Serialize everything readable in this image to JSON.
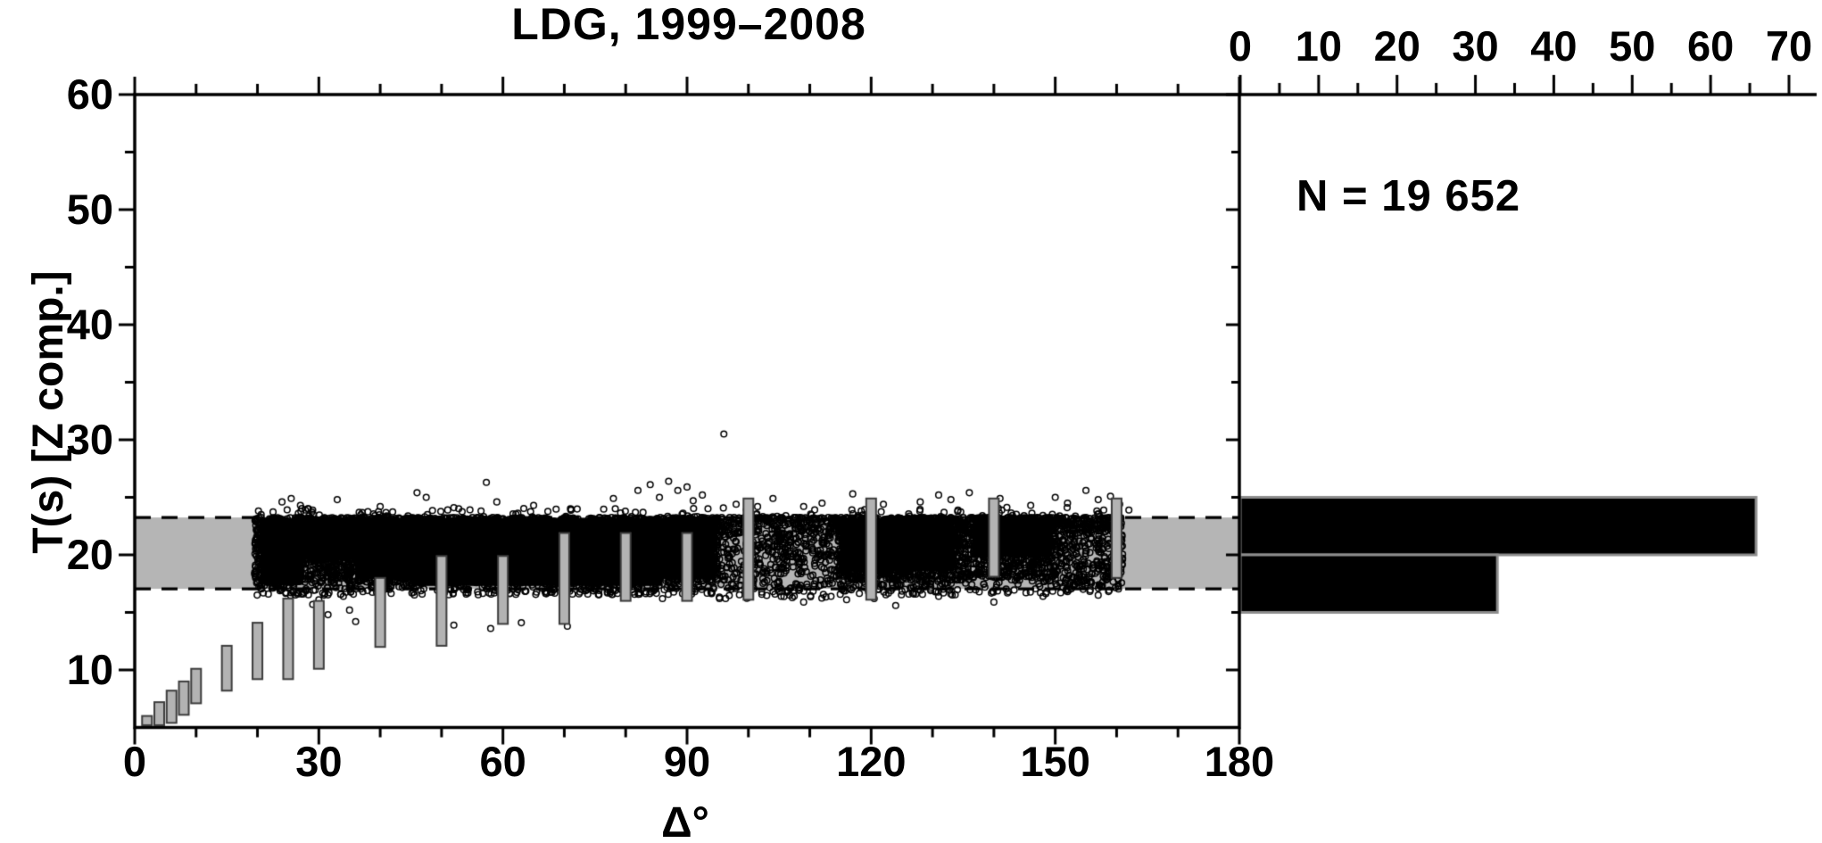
{
  "title": "LDG, 1999–2008",
  "annotations": {
    "count_label": "N = 19 652"
  },
  "axis_labels": {
    "x": "Δ°",
    "y": "T(s) [Z comp.]"
  },
  "colors": {
    "background": "#ffffff",
    "ink": "#000000",
    "band_gray": "#b5b5b5",
    "bar_gray": "#b3b3b3",
    "bar_outline": "#3d3d3d",
    "hist_fill": "#000000",
    "hist_outline": "#8c8c8c"
  },
  "chart_data": [
    {
      "type": "scatter",
      "panel": "left",
      "title": "LDG, 1999–2008",
      "xlabel": "Δ°",
      "ylabel": "T(s) [Z comp.]",
      "xlim": [
        0,
        180
      ],
      "ylim": [
        5,
        60
      ],
      "x_major_ticks": [
        0,
        30,
        60,
        90,
        120,
        150,
        180
      ],
      "x_minor_step": 10,
      "y_major_ticks": [
        10,
        20,
        30,
        40,
        50,
        60
      ],
      "y_minor_step": 5,
      "grid": false,
      "selection_band_T": [
        17.05,
        23.25
      ],
      "band_style": "gray horizontal band spanning full distance range, black dashed borders at both period limits",
      "scatter_description": "Dense cloud of ~19652 open black circles (dominant period measurements) filling the band T=17-23.3 s between distances 19.5 and 161 deg; sparser between 95-114 deg and beyond 134 deg; scattered outliers just above 23.3 s, a few below 17 s, one extreme point near (96, 30.5).",
      "dense_x_range": [
        19.5,
        161
      ],
      "marker": {
        "shape": "open-circle",
        "radius_px": 3.3,
        "stroke_px": 1.5
      },
      "period_bars_note": "gray vertical bars = period pass-band vs distance",
      "period_bars": [
        {
          "delta": 2,
          "T": [
            5.2,
            6.0
          ]
        },
        {
          "delta": 4,
          "T": [
            5.2,
            7.2
          ]
        },
        {
          "delta": 6,
          "T": [
            5.4,
            8.2
          ]
        },
        {
          "delta": 8,
          "T": [
            6.1,
            9.0
          ]
        },
        {
          "delta": 10,
          "T": [
            7.1,
            10.1
          ]
        },
        {
          "delta": 15,
          "T": [
            8.2,
            12.1
          ]
        },
        {
          "delta": 20,
          "T": [
            9.2,
            14.1
          ]
        },
        {
          "delta": 25,
          "T": [
            9.2,
            16.2
          ]
        },
        {
          "delta": 30,
          "T": [
            10.1,
            16.0
          ]
        },
        {
          "delta": 40,
          "T": [
            12.0,
            18.0
          ]
        },
        {
          "delta": 50,
          "T": [
            12.1,
            19.9
          ]
        },
        {
          "delta": 60,
          "T": [
            14.0,
            19.9
          ]
        },
        {
          "delta": 70,
          "T": [
            14.0,
            21.9
          ]
        },
        {
          "delta": 80,
          "T": [
            16.0,
            21.9
          ]
        },
        {
          "delta": 90,
          "T": [
            16.0,
            21.9
          ]
        },
        {
          "delta": 100,
          "T": [
            16.1,
            24.9
          ]
        },
        {
          "delta": 120,
          "T": [
            16.1,
            24.9
          ]
        },
        {
          "delta": 140,
          "T": [
            18.1,
            24.9
          ]
        },
        {
          "delta": 160,
          "T": [
            18.0,
            24.9
          ]
        }
      ],
      "bar_width_deg": 1.6,
      "scatter_segments": [
        {
          "x": [
            19.5,
            95
          ],
          "n": 4800,
          "t_top": 23.25,
          "t_core": 17.6,
          "pow": 1.15,
          "below_frac": 0.07,
          "t_below": 16.5
        },
        {
          "x": [
            95,
            114.5
          ],
          "n": 620,
          "t_top": 23.25,
          "t_core": 17.4,
          "pow": 1.5,
          "below_frac": 0.1,
          "t_below": 16.2
        },
        {
          "x": [
            114.5,
            134
          ],
          "n": 1650,
          "t_top": 23.25,
          "t_core": 17.8,
          "pow": 1.2,
          "below_frac": 0.06,
          "t_below": 16.5
        },
        {
          "x": [
            134,
            151
          ],
          "n": 900,
          "t_top": 23.25,
          "t_core": 18.0,
          "pow": 1.4,
          "below_frac": 0.06,
          "t_below": 16.6
        },
        {
          "x": [
            151,
            161
          ],
          "n": 400,
          "t_top": 23.25,
          "t_core": 17.9,
          "pow": 1.4,
          "below_frac": 0.08,
          "t_below": 16.8
        },
        {
          "x": [
            20,
            161
          ],
          "n": 120,
          "t_top": 24.35,
          "t_core": 23.3,
          "pow": 0.5,
          "below_frac": 0,
          "t_below": 23.3
        }
      ],
      "solid_regions": [
        {
          "x": [
            20.5,
            27.5
          ],
          "T": [
            17.4,
            23.2
          ]
        },
        {
          "x": [
            27.5,
            39
          ],
          "T": [
            19.6,
            23.2
          ]
        },
        {
          "x": [
            36,
            94.5
          ],
          "T": [
            17.9,
            23.2
          ]
        },
        {
          "x": [
            45,
            86
          ],
          "T": [
            17.3,
            23.2
          ]
        },
        {
          "x": [
            115,
            133.5
          ],
          "T": [
            18.6,
            23.2
          ]
        },
        {
          "x": [
            136.5,
            149.5
          ],
          "T": [
            19.8,
            23.2
          ]
        }
      ],
      "outliers_above": [
        [
          24,
          24.6
        ],
        [
          25.5,
          24.9
        ],
        [
          27,
          24.3
        ],
        [
          29,
          23.9
        ],
        [
          33,
          24.8
        ],
        [
          40,
          24.2
        ],
        [
          46,
          25.4
        ],
        [
          47.5,
          25.0
        ],
        [
          52,
          24.1
        ],
        [
          57.3,
          26.3
        ],
        [
          59,
          24.6
        ],
        [
          65,
          24.3
        ],
        [
          71,
          24.0
        ],
        [
          78,
          24.9
        ],
        [
          82,
          25.6
        ],
        [
          84,
          26.1
        ],
        [
          85.5,
          25.0
        ],
        [
          87,
          26.4
        ],
        [
          88.5,
          25.6
        ],
        [
          90,
          25.9
        ],
        [
          91,
          24.7
        ],
        [
          92.5,
          25.2
        ],
        [
          96,
          30.5
        ],
        [
          98,
          24.4
        ],
        [
          104,
          24.9
        ],
        [
          109,
          24.2
        ],
        [
          112,
          24.5
        ],
        [
          117,
          25.3
        ],
        [
          122,
          24.4
        ],
        [
          128,
          24.6
        ],
        [
          131,
          25.2
        ],
        [
          133,
          24.8
        ],
        [
          136,
          25.4
        ],
        [
          141,
          24.9
        ],
        [
          146,
          24.3
        ],
        [
          150,
          25.0
        ],
        [
          152,
          24.5
        ],
        [
          155,
          25.6
        ],
        [
          157,
          24.8
        ],
        [
          159,
          25.1
        ],
        [
          160.5,
          24.4
        ],
        [
          162,
          23.9
        ]
      ],
      "outliers_below": [
        [
          29,
          15.7
        ],
        [
          30,
          16.1
        ],
        [
          31.5,
          14.8
        ],
        [
          34,
          16.4
        ],
        [
          35,
          15.2
        ],
        [
          36,
          14.2
        ],
        [
          52,
          13.9
        ],
        [
          58,
          13.6
        ],
        [
          63,
          14.1
        ],
        [
          70.5,
          13.8
        ],
        [
          86,
          16.2
        ],
        [
          100,
          16.3
        ],
        [
          104,
          16.8
        ],
        [
          109,
          15.9
        ],
        [
          116,
          16.1
        ],
        [
          120.5,
          16.2
        ],
        [
          124,
          15.6
        ],
        [
          131,
          16.4
        ],
        [
          140,
          15.9
        ],
        [
          148,
          16.4
        ],
        [
          152,
          16.8
        ],
        [
          157,
          16.5
        ]
      ]
    },
    {
      "type": "bar",
      "panel": "right",
      "orientation": "horizontal",
      "annotation": "N = 19 652",
      "N": 19652,
      "value_axis": {
        "position": "top",
        "min": 0,
        "max": 70,
        "major_ticks": [
          0,
          10,
          20,
          30,
          40,
          50,
          60,
          70
        ],
        "minor_step": 5,
        "unit": "percent"
      },
      "category_axis": "T(s), shared with left panel",
      "bins": [
        {
          "T_range": [
            20,
            25
          ],
          "value": 65.8
        },
        {
          "T_range": [
            15,
            20
          ],
          "value": 32.8
        }
      ],
      "legend": null
    }
  ]
}
